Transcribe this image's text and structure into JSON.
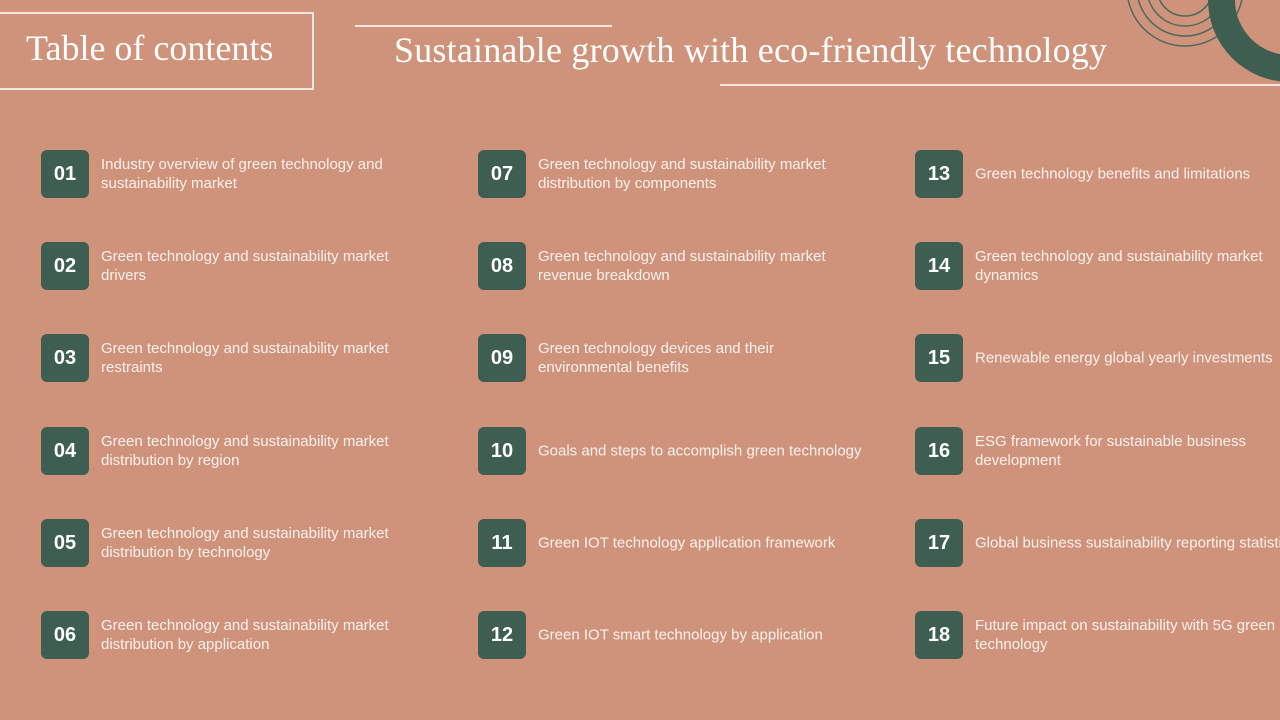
{
  "header": {
    "toc_title": "Table of contents",
    "main_title": "Sustainable growth with eco-friendly technology"
  },
  "colors": {
    "background": "#cf927a",
    "badge": "#3e5e51",
    "text": "#fbf1ec",
    "rule": "#f4e6de"
  },
  "items": [
    {
      "num": "01",
      "label": "Industry  overview  of green technology  and sustainability market"
    },
    {
      "num": "02",
      "label": "Green technology  and  sustainability market drivers"
    },
    {
      "num": "03",
      "label": "Green technology  and  sustainability market restraints"
    },
    {
      "num": "04",
      "label": "Green technology  and  sustainability  market distribution by region"
    },
    {
      "num": "05",
      "label": "Green technology  and  sustainability  market distribution by technology"
    },
    {
      "num": "06",
      "label": "Green technology  and  sustainability market distribution by application"
    },
    {
      "num": "07",
      "label": "Green technology  and  sustainability  market distribution by components"
    },
    {
      "num": "08",
      "label": "Green technology  and  sustainability  market revenue  breakdown"
    },
    {
      "num": "09",
      "label": "Green technology  devices and their environmental  benefits"
    },
    {
      "num": "10",
      "label": "Goals and steps to accomplish green technology"
    },
    {
      "num": "11",
      "label": "Green IOT  technology application framework"
    },
    {
      "num": "12",
      "label": "Green IOT  smart technology by application"
    },
    {
      "num": "13",
      "label": "Green technology  benefits and limitations"
    },
    {
      "num": "14",
      "label": "Green technology  and  sustainability market dynamics"
    },
    {
      "num": "15",
      "label": "Renewable energy global yearly  investments"
    },
    {
      "num": "16",
      "label": "ESG framework for sustainable business development"
    },
    {
      "num": "17",
      "label": "Global business sustainability reporting statistics"
    },
    {
      "num": "18",
      "label": "Future  impact on sustainability with 5G green technology"
    }
  ]
}
